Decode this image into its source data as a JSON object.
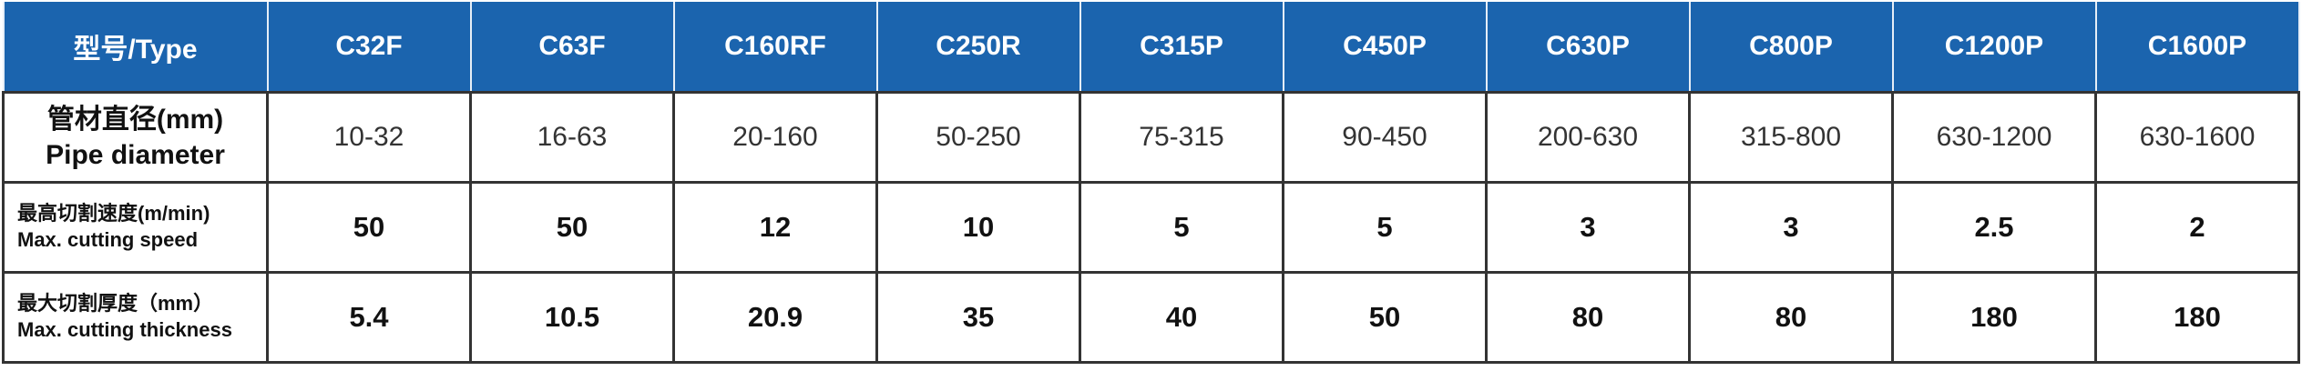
{
  "header": {
    "type_label": "型号/Type",
    "models": [
      "C32F",
      "C63F",
      "C160RF",
      "C250R",
      "C315P",
      "C450P",
      "C630P",
      "C800P",
      "C1200P",
      "C1600P"
    ]
  },
  "rows": [
    {
      "label_cn": "管材直径(mm)",
      "label_en": "Pipe diameter",
      "values": [
        "10-32",
        "16-63",
        "20-160",
        "50-250",
        "75-315",
        "90-450",
        "200-630",
        "315-800",
        "630-1200",
        "630-1600"
      ]
    },
    {
      "label_cn": "最高切割速度(m/min)",
      "label_en": "Max. cutting speed",
      "values": [
        "50",
        "50",
        "12",
        "10",
        "5",
        "5",
        "3",
        "3",
        "2.5",
        "2"
      ]
    },
    {
      "label_cn": "最大切割厚度（mm）",
      "label_en": "Max. cutting thickness",
      "values": [
        "5.4",
        "10.5",
        "20.9",
        "35",
        "40",
        "50",
        "80",
        "80",
        "180",
        "180"
      ]
    }
  ],
  "colors": {
    "header_bg": "#1b64ae",
    "header_text": "#ffffff",
    "border": "#333333"
  }
}
